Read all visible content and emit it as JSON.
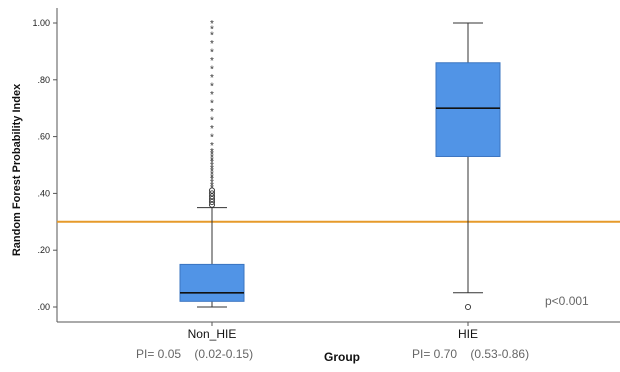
{
  "chart_data": {
    "type": "box",
    "ylabel": "Random Forest Probability Index",
    "xlabel": "Group",
    "ylim": [
      -0.05,
      1.03
    ],
    "y_ticks": [
      {
        "value": 0.0,
        "label": ".00"
      },
      {
        "value": 0.2,
        "label": ".20"
      },
      {
        "value": 0.4,
        "label": ".40"
      },
      {
        "value": 0.6,
        "label": ".60"
      },
      {
        "value": 0.8,
        "label": ".80"
      },
      {
        "value": 1.0,
        "label": "1.00"
      }
    ],
    "categories": [
      "Non_HIE",
      "HIE"
    ],
    "boxes": [
      {
        "category": "Non_HIE",
        "whisker_low": 0.0,
        "q1": 0.02,
        "median": 0.05,
        "q3": 0.15,
        "whisker_high": 0.35,
        "outliers": [
          0.36,
          0.37,
          0.38,
          0.39,
          0.4,
          0.41
        ],
        "extremes": [
          0.42,
          0.43,
          0.44,
          0.45,
          0.46,
          0.47,
          0.48,
          0.49,
          0.5,
          0.51,
          0.52,
          0.53,
          0.54,
          0.55,
          0.57,
          0.6,
          0.63,
          0.66,
          0.69,
          0.72,
          0.75,
          0.78,
          0.81,
          0.84,
          0.87,
          0.9,
          0.93,
          0.96,
          0.98,
          1.0
        ]
      },
      {
        "category": "HIE",
        "whisker_low": 0.05,
        "q1": 0.53,
        "median": 0.7,
        "q3": 0.86,
        "whisker_high": 1.0,
        "outliers": [
          0.0
        ],
        "extremes": []
      }
    ],
    "reference_line": {
      "y": 0.3,
      "color": "#e69a2a"
    },
    "box_color": "#5194e6",
    "annotations": {
      "pvalue": "p<0.001",
      "pi_non_hie": "PI= 0.05    (0.02-0.15)",
      "pi_hie": "PI= 0.70    (0.53-0.86)"
    }
  }
}
